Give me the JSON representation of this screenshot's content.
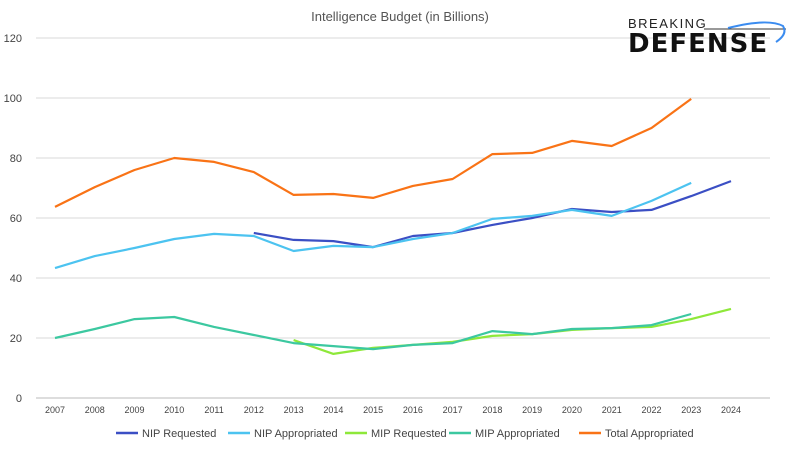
{
  "logo": {
    "line1": "BREAKING",
    "line2": "DEFENSE"
  },
  "chart_data": {
    "type": "line",
    "title": "Intelligence Budget (in Billions)",
    "xlabel": "",
    "ylabel": "",
    "x": [
      2007,
      2008,
      2009,
      2010,
      2011,
      2012,
      2013,
      2014,
      2015,
      2016,
      2017,
      2018,
      2019,
      2020,
      2021,
      2022,
      2023,
      2024
    ],
    "ylim": [
      0,
      120
    ],
    "yticks": [
      0,
      20,
      40,
      60,
      80,
      100,
      120
    ],
    "grid": true,
    "legend": "bottom",
    "series": [
      {
        "name": "NIP Requested",
        "color": "#3b4fc4",
        "values": [
          null,
          null,
          null,
          null,
          null,
          55,
          52.7,
          52.3,
          50.3,
          54,
          55,
          57.7,
          60,
          63,
          62,
          62.7,
          67.3,
          72.3
        ]
      },
      {
        "name": "NIP Appropriated",
        "color": "#4cc3f0",
        "values": [
          43.3,
          47.3,
          50,
          53,
          54.7,
          54,
          49,
          50.7,
          50.3,
          53,
          55,
          59.7,
          60.7,
          62.7,
          60.7,
          65.7,
          71.7,
          null
        ]
      },
      {
        "name": "MIP Requested",
        "color": "#8ee83a",
        "values": [
          null,
          null,
          null,
          null,
          null,
          null,
          19.3,
          14.7,
          16.7,
          17.7,
          18.7,
          20.7,
          21.3,
          22.7,
          23.3,
          23.7,
          26.3,
          29.7
        ]
      },
      {
        "name": "MIP Appropriated",
        "color": "#3cc8a0",
        "values": [
          20,
          23,
          26.3,
          27,
          23.7,
          21,
          18.3,
          17.3,
          16.3,
          17.7,
          18.3,
          22.3,
          21.3,
          23,
          23.3,
          24.3,
          28,
          null
        ]
      },
      {
        "name": "Total Appropriated",
        "color": "#f97316",
        "values": [
          63.7,
          70.3,
          76,
          80,
          78.7,
          75.3,
          67.7,
          68,
          66.7,
          70.7,
          73,
          81.3,
          81.7,
          85.7,
          84,
          90,
          99.7,
          null
        ]
      }
    ]
  }
}
